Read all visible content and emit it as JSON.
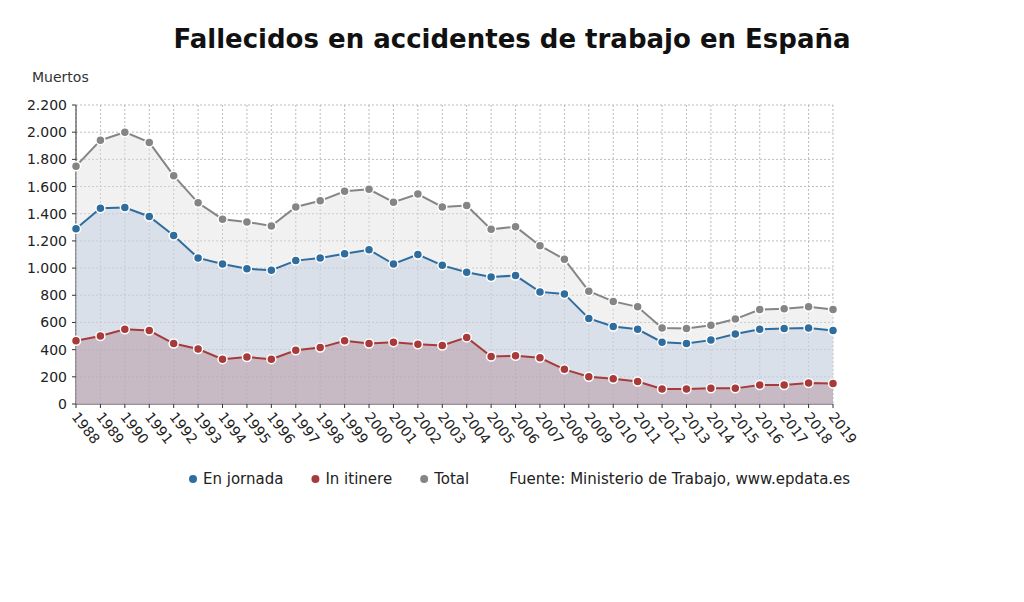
{
  "chart_data": {
    "type": "line",
    "title": "Fallecidos en accidentes de trabajo en España",
    "y_label": "Muertos",
    "source": "Fuente: Ministerio de Trabajo, www.epdata.es",
    "categories": [
      "1988",
      "1989",
      "1990",
      "1991",
      "1992",
      "1993",
      "1994",
      "1995",
      "1996",
      "1997",
      "1998",
      "1999",
      "2000",
      "2001",
      "2002",
      "2003",
      "2004",
      "2005",
      "2006",
      "2007",
      "2008",
      "2009",
      "2010",
      "2011",
      "2012",
      "2013",
      "2014",
      "2015",
      "2016",
      "2017",
      "2018",
      "2019"
    ],
    "series": [
      {
        "name": "En jornada",
        "color": "#2f6d9e",
        "marker": "circle",
        "values": [
          1290,
          1440,
          1445,
          1380,
          1240,
          1075,
          1030,
          995,
          985,
          1055,
          1075,
          1105,
          1135,
          1030,
          1100,
          1020,
          970,
          935,
          945,
          825,
          810,
          630,
          570,
          550,
          455,
          445,
          470,
          515,
          550,
          555,
          560,
          540
        ]
      },
      {
        "name": "In itinere",
        "color": "#a83a3a",
        "marker": "circle",
        "values": [
          465,
          500,
          550,
          540,
          445,
          405,
          330,
          345,
          330,
          395,
          415,
          465,
          445,
          455,
          440,
          430,
          490,
          350,
          355,
          340,
          255,
          200,
          185,
          165,
          110,
          110,
          115,
          115,
          140,
          140,
          155,
          150
        ]
      },
      {
        "name": "Total",
        "color": "#858585",
        "marker": "circle",
        "values": [
          1750,
          1940,
          2000,
          1925,
          1680,
          1480,
          1360,
          1340,
          1310,
          1450,
          1495,
          1565,
          1580,
          1485,
          1545,
          1450,
          1460,
          1285,
          1305,
          1165,
          1065,
          830,
          755,
          715,
          560,
          555,
          580,
          625,
          695,
          700,
          715,
          695
        ]
      }
    ],
    "ylim": [
      0,
      2200
    ],
    "yticks": [
      0,
      200,
      400,
      600,
      800,
      {
        "value": 1000,
        "label": "1.000"
      },
      {
        "value": 1200,
        "label": "1.200"
      },
      {
        "value": 1400,
        "label": "1.400"
      },
      {
        "value": 1600,
        "label": "1.600"
      },
      {
        "value": 1800,
        "label": "1.800"
      },
      {
        "value": 2000,
        "label": "2.000"
      },
      {
        "value": 2200,
        "label": "2.200"
      }
    ],
    "grid": true,
    "legend": "bottom"
  }
}
